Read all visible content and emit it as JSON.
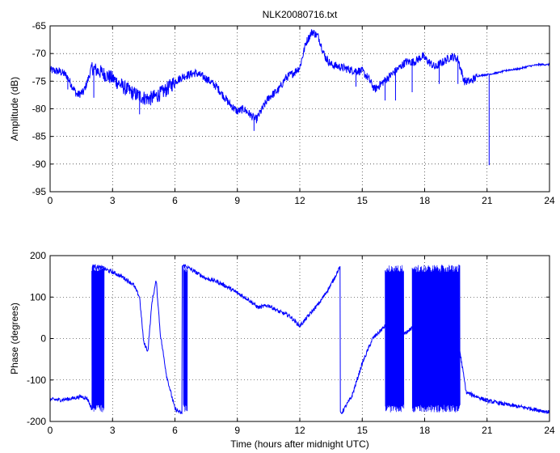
{
  "chart_data": [
    {
      "type": "line",
      "title": "NLK20080716.txt",
      "xlabel": "",
      "ylabel": "Amplitude (dB)",
      "xlim": [
        0,
        24
      ],
      "ylim": [
        -95,
        -65
      ],
      "xticks": [
        0,
        3,
        6,
        9,
        12,
        15,
        18,
        21,
        24
      ],
      "yticks": [
        -95,
        -90,
        -85,
        -80,
        -75,
        -70,
        -65
      ],
      "grid": true,
      "color": "#0000ff",
      "x": [
        0,
        0.5,
        0.8,
        1.0,
        1.3,
        1.6,
        1.8,
        2.0,
        2.2,
        2.5,
        3.0,
        3.5,
        4.0,
        4.5,
        4.8,
        5.2,
        5.6,
        6.0,
        6.5,
        7.0,
        7.5,
        8.0,
        8.3,
        8.6,
        9.0,
        9.3,
        9.6,
        9.9,
        10.2,
        10.5,
        11.0,
        11.3,
        11.7,
        12.0,
        12.3,
        12.6,
        12.9,
        13.2,
        13.5,
        14.0,
        14.5,
        15.0,
        15.3,
        15.6,
        15.9,
        16.2,
        16.5,
        16.8,
        17.1,
        17.5,
        17.9,
        18.2,
        18.5,
        18.9,
        19.3,
        19.6,
        19.9,
        20.2,
        20.6,
        21.0,
        21.5,
        22.0,
        22.5,
        23.0,
        23.5,
        24.0
      ],
      "y": [
        -73,
        -73.3,
        -74,
        -75.5,
        -77.5,
        -77,
        -75,
        -72.5,
        -73,
        -73.5,
        -74.5,
        -76,
        -77.2,
        -78,
        -78.2,
        -77.5,
        -76.5,
        -75,
        -74,
        -73.5,
        -74.5,
        -76,
        -77.5,
        -79,
        -80.5,
        -80,
        -81,
        -82,
        -80,
        -78,
        -76.5,
        -74.5,
        -73.5,
        -72.5,
        -68,
        -66,
        -67,
        -70.5,
        -72,
        -72.5,
        -73,
        -73.2,
        -74.5,
        -76.5,
        -75.5,
        -74.5,
        -73.5,
        -72.5,
        -71.5,
        -71.5,
        -70.5,
        -71.5,
        -72.5,
        -71.5,
        -70.5,
        -71,
        -75,
        -75,
        -74,
        -73.8,
        -73.5,
        -73,
        -72.8,
        -72.3,
        -72,
        -72
      ],
      "spikes": [
        {
          "x": 0.85,
          "y": -76.5
        },
        {
          "x": 2.1,
          "y": -78
        },
        {
          "x": 4.3,
          "y": -81
        },
        {
          "x": 9.8,
          "y": -84
        },
        {
          "x": 14.7,
          "y": -76
        },
        {
          "x": 16.1,
          "y": -78.5
        },
        {
          "x": 16.6,
          "y": -78.5
        },
        {
          "x": 17.4,
          "y": -77
        },
        {
          "x": 18.7,
          "y": -75.5
        },
        {
          "x": 19.6,
          "y": -75.5
        },
        {
          "x": 21.1,
          "y": -90.2
        }
      ]
    },
    {
      "type": "line",
      "title": "",
      "xlabel": "Time (hours after midnight UTC)",
      "ylabel": "Phase (degrees)",
      "xlim": [
        0,
        24
      ],
      "ylim": [
        -200,
        200
      ],
      "xticks": [
        0,
        3,
        6,
        9,
        12,
        15,
        18,
        21,
        24
      ],
      "yticks": [
        -200,
        -100,
        0,
        100,
        200
      ],
      "grid": true,
      "color": "#0000ff",
      "x": [
        0,
        0.5,
        1.0,
        1.5,
        1.8,
        2.0,
        2.05,
        2.5,
        3.0,
        3.5,
        4.0,
        4.3,
        4.5,
        4.7,
        4.9,
        5.1,
        5.3,
        5.6,
        6.0,
        6.3,
        6.4,
        6.5,
        7.0,
        7.5,
        8.0,
        8.5,
        9.0,
        9.5,
        10.0,
        10.5,
        11.0,
        11.5,
        12.0,
        12.5,
        13.0,
        13.5,
        13.9,
        14.0,
        14.5,
        15.0,
        15.5,
        15.9,
        16.3,
        17.0,
        17.5,
        18.0,
        18.5,
        19.0,
        19.5,
        19.6,
        20.0,
        20.5,
        21.0,
        22.0,
        23.0,
        24.0
      ],
      "y": [
        -147,
        -148,
        -145,
        -140,
        -145,
        -170,
        175,
        170,
        160,
        148,
        130,
        100,
        -10,
        -30,
        90,
        140,
        10,
        -90,
        -170,
        -180,
        175,
        175,
        160,
        145,
        138,
        125,
        110,
        95,
        75,
        80,
        65,
        55,
        30,
        60,
        90,
        130,
        170,
        -180,
        -140,
        -60,
        0,
        20,
        40,
        10,
        30,
        20,
        10,
        30,
        20,
        0,
        -130,
        -140,
        -150,
        -160,
        -168,
        -178
      ],
      "wrap_noise_ranges": [
        [
          2.0,
          2.6
        ],
        [
          6.4,
          6.6
        ],
        [
          16.1,
          17.0
        ],
        [
          17.4,
          19.7
        ]
      ]
    }
  ]
}
